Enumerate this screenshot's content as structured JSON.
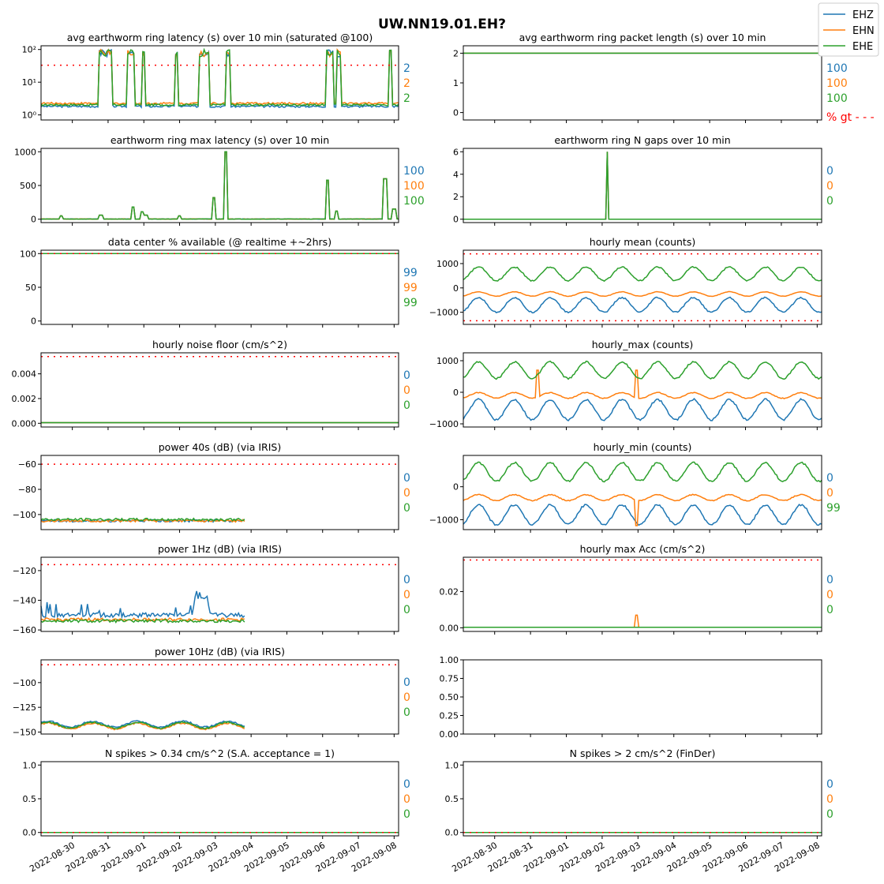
{
  "figure_title": "UW.NN19.01.EH?",
  "colors": {
    "EHZ": "#1f77b4",
    "EHN": "#ff7f0e",
    "EHE": "#2ca02c",
    "threshold": "#ff0000"
  },
  "legend": [
    {
      "label": "EHZ",
      "color": "#1f77b4"
    },
    {
      "label": "EHN",
      "color": "#ff7f0e"
    },
    {
      "label": "EHE",
      "color": "#2ca02c"
    }
  ],
  "x_axis": {
    "type": "date",
    "range": [
      "2022-08-29 03:00",
      "2022-09-08 03:00"
    ],
    "tick_labels": [
      "2022-08-30",
      "2022-08-31",
      "2022-09-01",
      "2022-09-02",
      "2022-09-03",
      "2022-09-04",
      "2022-09-05",
      "2022-09-06",
      "2022-09-07",
      "2022-09-08"
    ]
  },
  "chart_data": [
    {
      "type": "line",
      "title": "avg earthworm ring latency (s)   over 10 min (saturated @100)",
      "yscale": "log",
      "ylim": [
        0.7,
        130
      ],
      "yticks": [
        1,
        10,
        100
      ],
      "yticklabels": [
        "10⁰",
        "10¹",
        "10²"
      ],
      "threshold": 33,
      "side_values": [
        "2",
        "2",
        "2"
      ],
      "series": [
        {
          "name": "EHZ",
          "pattern": "latency_avg",
          "base": 1.7
        },
        {
          "name": "EHN",
          "pattern": "latency_avg",
          "base": 2.1
        },
        {
          "name": "EHE",
          "pattern": "latency_avg",
          "base": 1.9
        }
      ]
    },
    {
      "type": "line",
      "title": "avg earthworm ring packet length (s)   over 10 min",
      "ylim": [
        -0.25,
        2.25
      ],
      "yticks": [
        0,
        1,
        2
      ],
      "yticklabels": [
        "0",
        "1",
        "2"
      ],
      "side_values": [
        "100",
        "100",
        "100"
      ],
      "side_note": "% gt - - -",
      "series": [
        {
          "name": "EHZ",
          "pattern": "const",
          "base": 2
        },
        {
          "name": "EHN",
          "pattern": "const",
          "base": 2
        },
        {
          "name": "EHE",
          "pattern": "const",
          "base": 2
        }
      ]
    },
    {
      "type": "line",
      "title": "earthworm ring max latency (s)   over 10 min",
      "ylim": [
        -50,
        1050
      ],
      "yticks": [
        0,
        500,
        1000
      ],
      "yticklabels": [
        "0",
        "500",
        "1000"
      ],
      "side_values": [
        "100",
        "100",
        "100"
      ],
      "series": [
        {
          "name": "EHZ",
          "pattern": "latency_max",
          "base": 0
        },
        {
          "name": "EHN",
          "pattern": "latency_max",
          "base": 0
        },
        {
          "name": "EHE",
          "pattern": "latency_max",
          "base": 0
        }
      ]
    },
    {
      "type": "line",
      "title": "earthworm ring N gaps   over 10 min",
      "ylim": [
        -0.3,
        6.3
      ],
      "yticks": [
        0,
        2,
        4,
        6
      ],
      "yticklabels": [
        "0",
        "2",
        "4",
        "6"
      ],
      "side_values": [
        "0",
        "0",
        "0"
      ],
      "series": [
        {
          "name": "EHZ",
          "pattern": "gaps",
          "base": 0
        },
        {
          "name": "EHN",
          "pattern": "gaps",
          "base": 0
        },
        {
          "name": "EHE",
          "pattern": "gaps",
          "base": 0
        }
      ]
    },
    {
      "type": "line",
      "title": "data center % available (@ realtime +~2hrs)",
      "ylim": [
        -5,
        105
      ],
      "yticks": [
        0,
        50,
        100
      ],
      "yticklabels": [
        "0",
        "50",
        "100"
      ],
      "threshold": 100,
      "side_values": [
        "99",
        "99",
        "99"
      ],
      "series": [
        {
          "name": "EHZ",
          "pattern": "const",
          "base": 100
        },
        {
          "name": "EHN",
          "pattern": "const",
          "base": 100
        },
        {
          "name": "EHE",
          "pattern": "const",
          "base": 100
        }
      ]
    },
    {
      "type": "line",
      "title": "hourly mean (counts)",
      "ylim": [
        -1500,
        1550
      ],
      "yticks": [
        -1000,
        0,
        1000
      ],
      "yticklabels": [
        "−1000",
        "0",
        "1000"
      ],
      "threshold": [
        1400,
        -1350
      ],
      "series": [
        {
          "name": "EHZ",
          "pattern": "diurnal",
          "base": -700,
          "amp": 300
        },
        {
          "name": "EHN",
          "pattern": "diurnal",
          "base": -250,
          "amp": 90
        },
        {
          "name": "EHE",
          "pattern": "diurnal",
          "base": 580,
          "amp": 280
        }
      ]
    },
    {
      "type": "line",
      "title": "hourly noise floor (cm/s^2)",
      "ylim": [
        -0.0003,
        0.0057
      ],
      "yticks": [
        0,
        0.002,
        0.004
      ],
      "yticklabels": [
        "0.000",
        "0.002",
        "0.004"
      ],
      "threshold": 0.0054,
      "side_values": [
        "0",
        "0",
        "0"
      ],
      "series": [
        {
          "name": "EHZ",
          "pattern": "const",
          "base": 5e-05
        },
        {
          "name": "EHN",
          "pattern": "const",
          "base": 5e-05
        },
        {
          "name": "EHE",
          "pattern": "const",
          "base": 5e-05
        }
      ]
    },
    {
      "type": "line",
      "title": "hourly_max (counts)",
      "ylim": [
        -1100,
        1250
      ],
      "yticks": [
        -1000,
        0,
        1000
      ],
      "yticklabels": [
        "−1000",
        "0",
        "1000"
      ],
      "series": [
        {
          "name": "EHZ",
          "pattern": "diurnal",
          "base": -550,
          "amp": 320
        },
        {
          "name": "EHN",
          "pattern": "diurnal_spike",
          "base": -100,
          "amp": 90
        },
        {
          "name": "EHE",
          "pattern": "diurnal",
          "base": 700,
          "amp": 260
        }
      ]
    },
    {
      "type": "line",
      "title": "power 40s (dB) (via IRIS)",
      "ylim": [
        -112,
        -53
      ],
      "yticks": [
        -100,
        -80,
        -60
      ],
      "yticklabels": [
        "−100",
        "−80",
        "−60"
      ],
      "threshold": -60,
      "side_values": [
        "0",
        "0",
        "0"
      ],
      "series": [
        {
          "name": "EHZ",
          "pattern": "noise_partial",
          "base": -105
        },
        {
          "name": "EHN",
          "pattern": "noise_partial",
          "base": -105
        },
        {
          "name": "EHE",
          "pattern": "noise_partial",
          "base": -104
        }
      ]
    },
    {
      "type": "line",
      "title": "hourly_min (counts)",
      "ylim": [
        -1300,
        950
      ],
      "yticks": [
        -1000,
        0
      ],
      "yticklabels": [
        "−1000",
        "0"
      ],
      "side_values": [
        "0",
        "0",
        "99"
      ],
      "series": [
        {
          "name": "EHZ",
          "pattern": "diurnal",
          "base": -850,
          "amp": 300
        },
        {
          "name": "EHN",
          "pattern": "diurnal_spike_down",
          "base": -330,
          "amp": 90
        },
        {
          "name": "EHE",
          "pattern": "diurnal",
          "base": 450,
          "amp": 280
        }
      ]
    },
    {
      "type": "line",
      "title": "power 1Hz (dB) (via IRIS)",
      "ylim": [
        -161,
        -111
      ],
      "yticks": [
        -160,
        -140,
        -120
      ],
      "yticklabels": [
        "−160",
        "−140",
        "−120"
      ],
      "threshold": -116,
      "side_values": [
        "0",
        "0",
        "0"
      ],
      "series": [
        {
          "name": "EHZ",
          "pattern": "spiky_partial",
          "base": -150
        },
        {
          "name": "EHN",
          "pattern": "noise_partial",
          "base": -153
        },
        {
          "name": "EHE",
          "pattern": "noise_partial",
          "base": -154
        }
      ]
    },
    {
      "type": "line",
      "title": "hourly max Acc (cm/s^2)",
      "ylim": [
        -0.002,
        0.039
      ],
      "yticks": [
        0,
        0.02
      ],
      "yticklabels": [
        "0.00",
        "0.02"
      ],
      "threshold": 0.0375,
      "side_values": [
        "0",
        "0",
        "0"
      ],
      "series": [
        {
          "name": "EHZ",
          "pattern": "const",
          "base": 0.0003
        },
        {
          "name": "EHN",
          "pattern": "small_spike",
          "base": 0.0003
        },
        {
          "name": "EHE",
          "pattern": "const",
          "base": 0.0003
        }
      ]
    },
    {
      "type": "line",
      "title": "power 10Hz (dB) (via IRIS)",
      "ylim": [
        -152,
        -77
      ],
      "yticks": [
        -150,
        -125,
        -100
      ],
      "yticklabels": [
        "−150",
        "−125",
        "−100"
      ],
      "threshold": -82,
      "side_values": [
        "0",
        "0",
        "0"
      ],
      "series": [
        {
          "name": "EHZ",
          "pattern": "smooth_partial",
          "base": -142
        },
        {
          "name": "EHN",
          "pattern": "smooth_partial",
          "base": -144
        },
        {
          "name": "EHE",
          "pattern": "smooth_partial",
          "base": -143
        }
      ]
    },
    {
      "type": "line",
      "title": "",
      "ylim": [
        0,
        1
      ],
      "yticks": [
        0,
        0.25,
        0.5,
        0.75,
        1
      ],
      "yticklabels": [
        "0.00",
        "0.25",
        "0.50",
        "0.75",
        "1.00"
      ],
      "series": []
    },
    {
      "type": "line",
      "title": "N spikes > 0.34 cm/s^2 (S.A. acceptance = 1)",
      "ylim": [
        -0.05,
        1.05
      ],
      "yticks": [
        0,
        0.5,
        1
      ],
      "yticklabels": [
        "0.0",
        "0.5",
        "1.0"
      ],
      "threshold": 0,
      "side_values": [
        "0",
        "0",
        "0"
      ],
      "series": [
        {
          "name": "EHZ",
          "pattern": "const",
          "base": 0
        },
        {
          "name": "EHN",
          "pattern": "const",
          "base": 0
        },
        {
          "name": "EHE",
          "pattern": "const",
          "base": 0
        }
      ]
    },
    {
      "type": "line",
      "title": "N spikes > 2 cm/s^2 (FinDer)",
      "ylim": [
        -0.05,
        1.05
      ],
      "yticks": [
        0,
        0.5,
        1
      ],
      "yticklabels": [
        "0.0",
        "0.5",
        "1.0"
      ],
      "threshold": 0,
      "side_values": [
        "0",
        "0",
        "0"
      ],
      "series": [
        {
          "name": "EHZ",
          "pattern": "const",
          "base": 0
        },
        {
          "name": "EHN",
          "pattern": "const",
          "base": 0
        },
        {
          "name": "EHE",
          "pattern": "const",
          "base": 0
        }
      ]
    }
  ]
}
